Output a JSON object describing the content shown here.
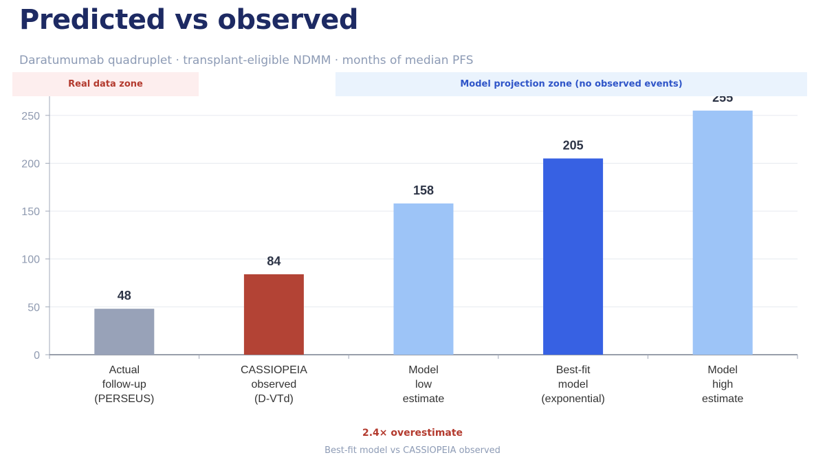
{
  "header": {
    "title": "Predicted vs observed",
    "subtitle": "Daratumumab quadruplet · transplant-eligible NDMM · months of median PFS"
  },
  "zones": {
    "real": "Real data zone",
    "model": "Model projection zone (no observed events)"
  },
  "callout": {
    "headline": "2.4× overestimate",
    "detail": "Best-fit model vs CASSIOPEIA observed"
  },
  "chart_data": {
    "type": "bar",
    "title": "",
    "xlabel": "",
    "ylabel": "",
    "ylim": [
      0,
      270
    ],
    "yticks": [
      0,
      50,
      100,
      150,
      200,
      250
    ],
    "grid": true,
    "categories": [
      [
        "Actual",
        "follow-up",
        "(PERSEUS)"
      ],
      [
        "CASSIOPEIA",
        "observed",
        "(D-VTd)"
      ],
      [
        "Model",
        "low",
        "estimate"
      ],
      [
        "Best-fit",
        "model",
        "(exponential)"
      ],
      [
        "Model",
        "high",
        "estimate"
      ]
    ],
    "values": [
      48,
      84,
      158,
      205,
      255
    ],
    "colors": [
      "#98a2b8",
      "#b34335",
      "#9dc4f7",
      "#3761e3",
      "#9dc4f7"
    ]
  }
}
